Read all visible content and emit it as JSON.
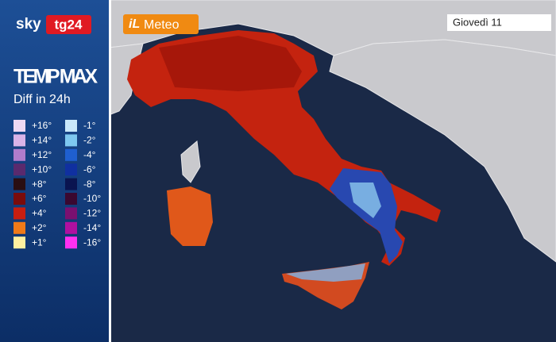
{
  "logo": {
    "brand": "sky",
    "channel": "tg24"
  },
  "panel": {
    "title": "TEMP MAX",
    "subtitle": "Diff in 24h"
  },
  "legend": {
    "warmer": [
      {
        "label": "+16°",
        "color": "#efd9f3"
      },
      {
        "label": "+14°",
        "color": "#d9b3e8"
      },
      {
        "label": "+12°",
        "color": "#b07ccc"
      },
      {
        "label": "+10°",
        "color": "#5a2a6e"
      },
      {
        "label": "+8°",
        "color": "#2a0e12"
      },
      {
        "label": "+6°",
        "color": "#7a0c0c"
      },
      {
        "label": "+4°",
        "color": "#c81e10"
      },
      {
        "label": "+2°",
        "color": "#f07a18"
      },
      {
        "label": "+1°",
        "color": "#fff0a0"
      }
    ],
    "cooler": [
      {
        "label": "-1°",
        "color": "#c9e8fa"
      },
      {
        "label": "-2°",
        "color": "#7ec8f0"
      },
      {
        "label": "-4°",
        "color": "#1f5fd0"
      },
      {
        "label": "-6°",
        "color": "#1030a0"
      },
      {
        "label": "-8°",
        "color": "#0a1450"
      },
      {
        "label": "-10°",
        "color": "#3a0830"
      },
      {
        "label": "-12°",
        "color": "#7a1070"
      },
      {
        "label": "-14°",
        "color": "#b010a0"
      },
      {
        "label": "-16°",
        "color": "#ff30f0"
      }
    ]
  },
  "badge": {
    "prefix": "iL",
    "name": "Meteo"
  },
  "date": "Giovedì 11"
}
